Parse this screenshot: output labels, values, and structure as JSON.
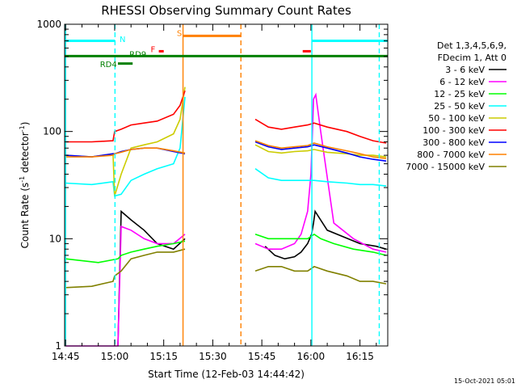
{
  "chart_data": {
    "type": "line",
    "title": "RHESSI Observing Summary Count Rates",
    "xlabel": "Start Time (12-Feb-03 14:44:42)",
    "ylabel_main": "Count Rate (s",
    "ylabel_sup1": "-1",
    "ylabel_mid": " detector",
    "ylabel_sup2": "-1",
    "ylabel_end": ")",
    "yscale": "log",
    "ylim": [
      1,
      1000
    ],
    "xlim_min": [
      -0.3,
      98.5
    ],
    "x_ticks": [
      {
        "t": 0,
        "label": "14:45"
      },
      {
        "t": 15,
        "label": "15:00"
      },
      {
        "t": 30,
        "label": "15:15"
      },
      {
        "t": 45,
        "label": "15:30"
      },
      {
        "t": 60,
        "label": "15:45"
      },
      {
        "t": 75,
        "label": "16:00"
      },
      {
        "t": 90,
        "label": "16:15"
      }
    ],
    "y_ticks": [
      {
        "v": 1,
        "label": "1"
      },
      {
        "v": 10,
        "label": "10"
      },
      {
        "v": 100,
        "label": "100"
      },
      {
        "v": 1000,
        "label": "1000"
      }
    ],
    "legend_header": [
      "Det 1,3,4,5,6,9,",
      "FDecim 1, Att 0"
    ],
    "series": [
      {
        "name": "3 - 6 keV",
        "color": "#000000",
        "x": [
          0,
          14,
          16,
          17,
          20,
          24,
          28,
          33,
          36.5,
          55.5,
          58,
          61,
          64,
          67,
          70,
          72,
          74,
          75.2,
          75.8,
          76.3,
          80,
          90,
          95,
          98
        ],
        "y": [
          null,
          null,
          null,
          null,
          null,
          null,
          null,
          null,
          null,
          null,
          null,
          8.5,
          7,
          6.5,
          6.8,
          7.5,
          9,
          11,
          14,
          18,
          12,
          9,
          8.5,
          8
        ],
        "yf": [
          null,
          null,
          1,
          18,
          15,
          12,
          9,
          8,
          10,
          null,
          null,
          null,
          null,
          null,
          null,
          null,
          null,
          null,
          null,
          null,
          null,
          null,
          null,
          null
        ]
      },
      {
        "name": "6 - 12 keV",
        "color": "#ff00ff",
        "x": [
          0,
          16,
          17,
          20,
          24,
          28,
          33,
          36.5,
          55.5,
          58,
          62,
          66,
          70,
          72,
          74,
          75,
          75.8,
          76.5,
          78,
          82,
          88,
          94,
          98
        ],
        "y": [
          1,
          1,
          13,
          12,
          10,
          9,
          9,
          11,
          null,
          9,
          8,
          8,
          9,
          11,
          18,
          40,
          200,
          220,
          100,
          14,
          10,
          8,
          7.5
        ]
      },
      {
        "name": "12 - 25 keV",
        "color": "#00ff00",
        "x": [
          0,
          10,
          16,
          17,
          20,
          24,
          28,
          33,
          36.5,
          55.5,
          58,
          62,
          66,
          70,
          74,
          76,
          78,
          82,
          88,
          94,
          98
        ],
        "y": [
          6.5,
          6,
          6.5,
          7,
          7.5,
          8,
          8.5,
          9,
          9.5,
          null,
          11,
          10,
          10,
          10,
          10,
          11,
          10,
          9,
          8,
          7.5,
          7
        ]
      },
      {
        "name": "25 - 50 keV",
        "color": "#00ffff",
        "x": [
          0,
          8,
          14.5,
          15,
          17,
          20,
          24,
          28,
          33,
          35,
          36.5,
          55.5,
          58,
          62,
          66,
          70,
          74,
          76,
          80,
          86,
          90,
          94,
          98
        ],
        "y": [
          33,
          32,
          34,
          25,
          26,
          35,
          40,
          45,
          50,
          70,
          210,
          null,
          45,
          37,
          35,
          35,
          35,
          35,
          34,
          33,
          32,
          32,
          31
        ]
      },
      {
        "name": "50 - 100 keV",
        "color": "#cccc00",
        "x": [
          0,
          8,
          14.5,
          15,
          17,
          20,
          24,
          28,
          33,
          35,
          36.5,
          55.5,
          58,
          62,
          66,
          70,
          74,
          76,
          80,
          86,
          90,
          94,
          98
        ],
        "y": [
          60,
          58,
          62,
          25,
          40,
          70,
          75,
          80,
          95,
          130,
          260,
          null,
          75,
          65,
          63,
          65,
          66,
          68,
          64,
          62,
          60,
          60,
          58
        ]
      },
      {
        "name": "100 - 300 keV",
        "color": "#ff0000",
        "x": [
          0,
          8,
          14.5,
          15,
          17,
          20,
          24,
          28,
          33,
          35,
          36.5,
          55.5,
          58,
          62,
          66,
          70,
          74,
          76,
          80,
          86,
          90,
          94,
          98
        ],
        "y": [
          80,
          80,
          82,
          100,
          105,
          115,
          120,
          125,
          145,
          175,
          240,
          null,
          130,
          110,
          105,
          110,
          115,
          120,
          110,
          100,
          90,
          82,
          78
        ]
      },
      {
        "name": "300 - 800 keV",
        "color": "#0000ff",
        "x": [
          0,
          8,
          14.5,
          15,
          17,
          20,
          24,
          28,
          33,
          36.5,
          55.5,
          58,
          62,
          66,
          70,
          74,
          76,
          80,
          86,
          90,
          94,
          98
        ],
        "y": [
          60,
          58,
          62,
          62,
          65,
          68,
          70,
          70,
          65,
          62,
          null,
          80,
          72,
          68,
          70,
          72,
          75,
          70,
          63,
          58,
          55,
          53
        ]
      },
      {
        "name": "800 - 7000 keV",
        "color": "#ff8000",
        "x": [
          0,
          8,
          14.5,
          15,
          17,
          20,
          24,
          28,
          33,
          36.5,
          55.5,
          58,
          62,
          66,
          70,
          74,
          76,
          80,
          86,
          90,
          94,
          98
        ],
        "y": [
          58,
          58,
          60,
          62,
          64,
          68,
          70,
          70,
          66,
          63,
          null,
          82,
          74,
          70,
          72,
          74,
          78,
          72,
          66,
          62,
          58,
          56
        ]
      },
      {
        "name": "7000 - 15000 keV",
        "color": "#808000",
        "x": [
          0,
          8,
          14.5,
          15,
          17,
          20,
          24,
          28,
          33,
          36.5,
          55.5,
          58,
          62,
          66,
          70,
          74,
          76,
          80,
          86,
          90,
          94,
          98
        ],
        "y": [
          3.5,
          3.6,
          4,
          4.5,
          5,
          6.5,
          7,
          7.5,
          7.5,
          8,
          null,
          5,
          5.5,
          5.5,
          5,
          5,
          5.5,
          5,
          4.5,
          4,
          4,
          3.8
        ]
      }
    ],
    "vertical_lines": [
      {
        "t": 0,
        "color": "#00ffff",
        "style": "solid"
      },
      {
        "t": 15.1,
        "color": "#00ffff",
        "style": "dashed"
      },
      {
        "t": 35.9,
        "color": "#ff8000",
        "style": "solid"
      },
      {
        "t": 53.6,
        "color": "#ff8000",
        "style": "dashed"
      },
      {
        "t": 75.3,
        "color": "#00ffff",
        "style": "solid"
      },
      {
        "t": 95.9,
        "color": "#00ffff",
        "style": "dashed"
      }
    ],
    "flag_bars": [
      {
        "label": "N",
        "color": "#00ffff",
        "y": 700,
        "segments": [
          [
            -1,
            15.1
          ],
          [
            75.3,
            98.5
          ]
        ],
        "label_t": 16.5,
        "label_y": 720
      },
      {
        "label": "S",
        "color": "#ff8000",
        "y": 780,
        "segments": [
          [
            35.9,
            53.6
          ]
        ],
        "label_t": 34,
        "label_y": 820
      },
      {
        "label": "F",
        "color": "#ff0000",
        "y": 560,
        "segments": [
          [
            28.5,
            30
          ],
          [
            72.5,
            75
          ]
        ],
        "label_t": 26,
        "label_y": 580
      },
      {
        "label": "RD9",
        "color": "#008000",
        "y": 505,
        "segments": [
          [
            -1,
            98.5
          ]
        ],
        "label_t": 19.5,
        "label_y": 520
      },
      {
        "label": "RD4",
        "color": "#008000",
        "y": 430,
        "segments": [
          [
            16,
            20.5
          ]
        ],
        "label_t": 10.5,
        "label_y": 420
      }
    ],
    "footer_stamp": "15-Oct-2021 05:01"
  }
}
